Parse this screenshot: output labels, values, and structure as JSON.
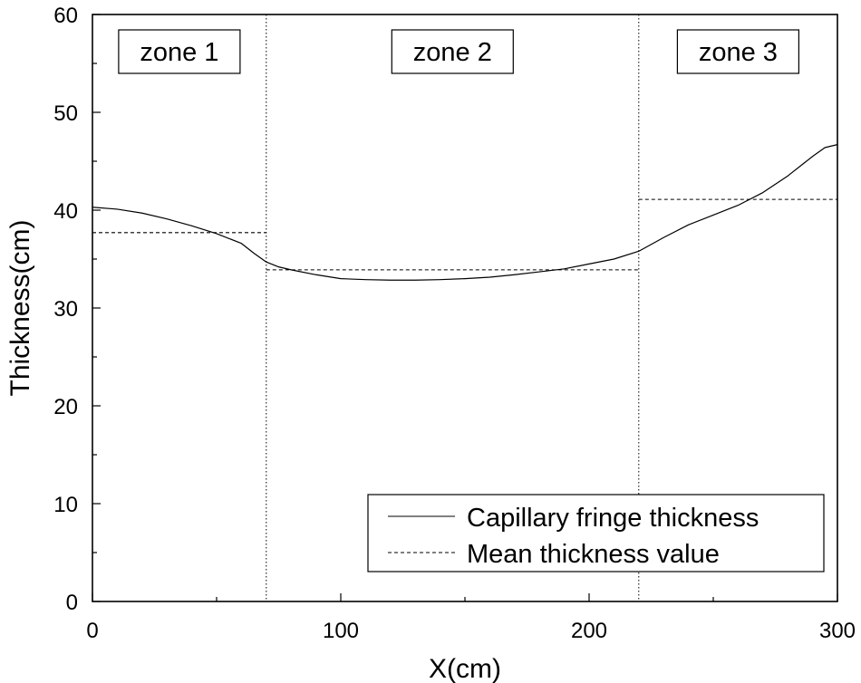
{
  "chart_data": {
    "type": "line",
    "xlabel": "X(cm)",
    "ylabel": "Thickness(cm)",
    "xlim": [
      0,
      300
    ],
    "ylim": [
      0,
      60
    ],
    "x_ticks": [
      0,
      100,
      200,
      300
    ],
    "y_ticks": [
      0,
      10,
      20,
      30,
      40,
      50,
      60
    ],
    "grid": false,
    "legend_position": "bottom-right",
    "zone_boundaries": [
      70,
      220
    ],
    "zones": [
      {
        "label": "zone 1",
        "x_center": 35
      },
      {
        "label": "zone 2",
        "x_center": 145
      },
      {
        "label": "zone 3",
        "x_center": 260
      }
    ],
    "series": [
      {
        "name": "Capillary fringe thickness",
        "style": "solid",
        "x": [
          0,
          10,
          20,
          30,
          40,
          50,
          60,
          65,
          70,
          75,
          80,
          90,
          100,
          110,
          120,
          130,
          140,
          150,
          160,
          170,
          180,
          190,
          200,
          210,
          220,
          230,
          240,
          250,
          260,
          270,
          280,
          290,
          295,
          300
        ],
        "y": [
          40.3,
          40.1,
          39.7,
          39.1,
          38.4,
          37.6,
          36.6,
          35.6,
          34.7,
          34.2,
          33.9,
          33.4,
          33.0,
          32.9,
          32.85,
          32.85,
          32.9,
          33.0,
          33.15,
          33.4,
          33.7,
          34.0,
          34.5,
          35.0,
          35.8,
          37.2,
          38.5,
          39.5,
          40.5,
          41.8,
          43.5,
          45.5,
          46.4,
          46.7
        ]
      },
      {
        "name": "Mean thickness value",
        "style": "dashed",
        "segments": [
          {
            "x": [
              0,
              70
            ],
            "y": 37.7
          },
          {
            "x": [
              70,
              220
            ],
            "y": 33.9
          },
          {
            "x": [
              220,
              300
            ],
            "y": 41.1
          }
        ]
      }
    ],
    "color": "#000000"
  }
}
